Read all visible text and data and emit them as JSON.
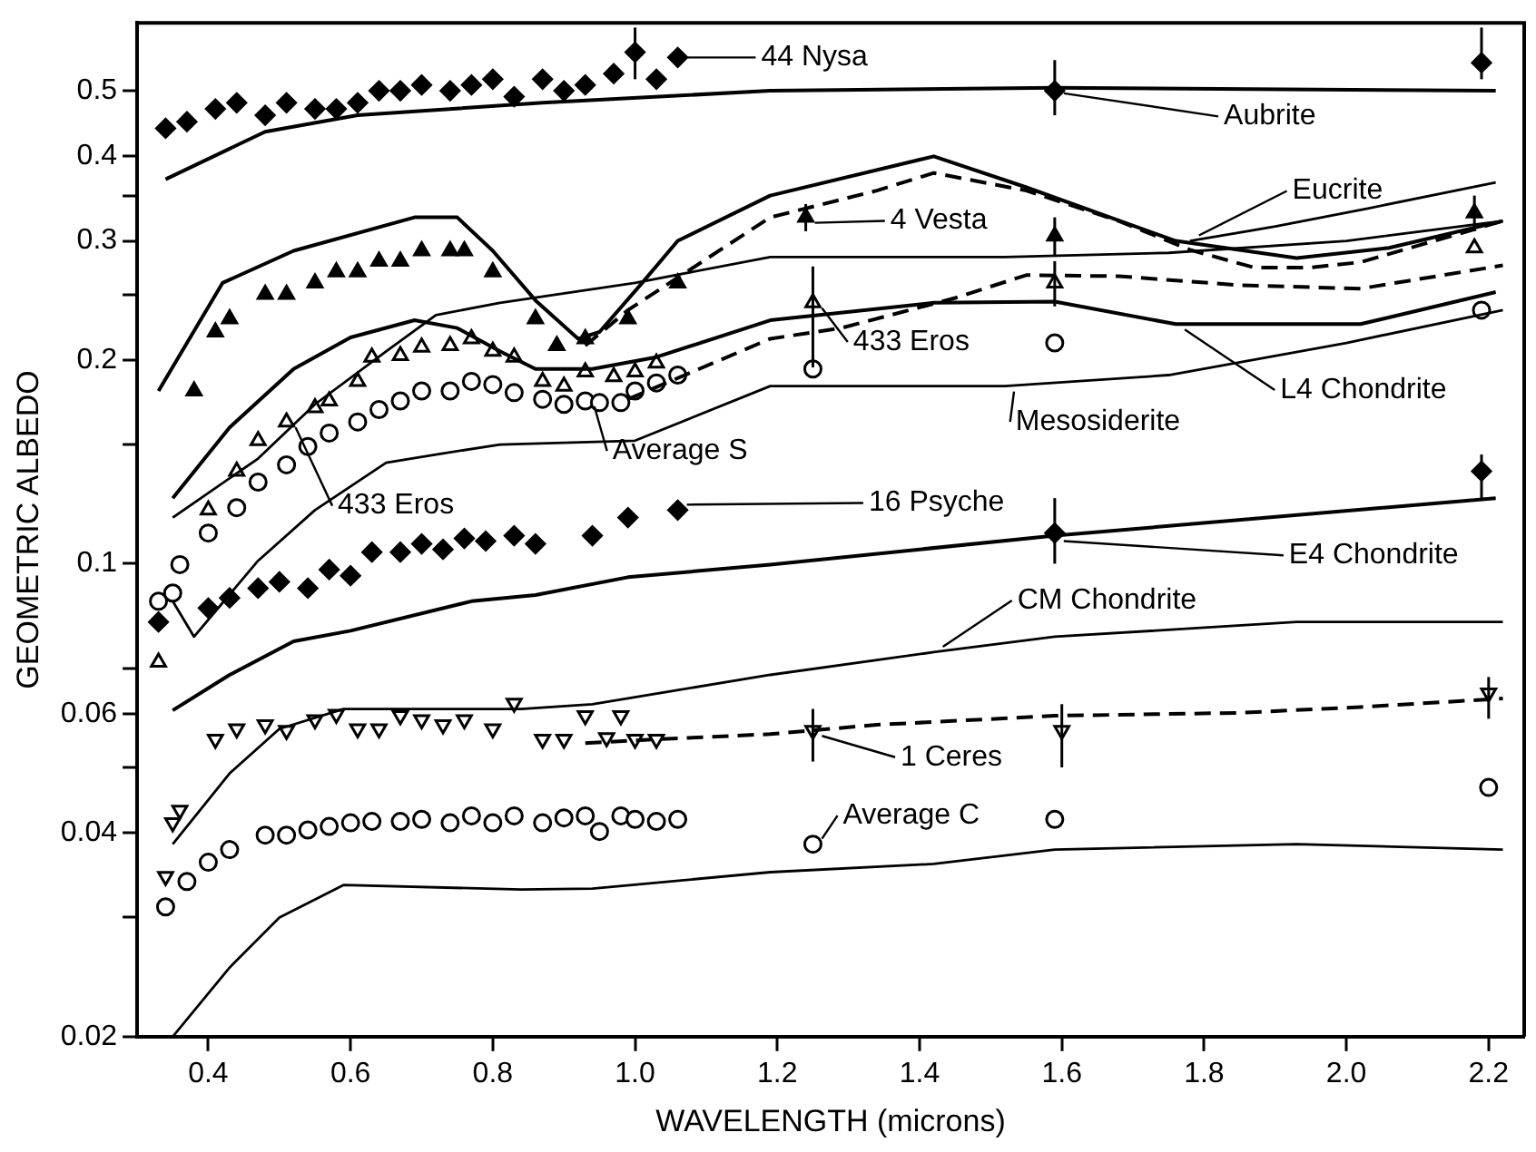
{
  "chart_data": {
    "type": "scatter",
    "xlabel": "WAVELENGTH (microns)",
    "ylabel": "GEOMETRIC ALBEDO",
    "log": "y",
    "xlim": [
      0.3,
      2.25
    ],
    "ylim": [
      0.02,
      0.63
    ],
    "xticks": [
      0.4,
      0.6,
      0.8,
      {
        "value": 1,
        "label": "1.0"
      },
      1.2,
      1.4,
      1.6,
      1.8,
      {
        "value": 2,
        "label": "2.0"
      },
      2.2
    ],
    "yticks": [
      0.02,
      {
        "value": 0.03,
        "label": null
      },
      0.04,
      {
        "value": 0.05,
        "label": null
      },
      0.06,
      {
        "value": 0.07,
        "label": null
      },
      0.1,
      {
        "value": 0.15,
        "label": null
      },
      0.2,
      {
        "value": 0.25,
        "label": null
      },
      0.3,
      {
        "value": 0.35,
        "label": null
      },
      0.4,
      0.5
    ],
    "series": [
      {
        "type": "line",
        "color": "#000000",
        "line_style": "solid",
        "x": [
          0.35,
          0.38,
          0.47,
          0.55,
          0.65,
          0.72,
          0.81,
          1.0,
          1.19,
          1.52,
          1.75,
          2.0,
          2.22
        ],
        "values": [
          0.117,
          0.123,
          0.143,
          0.172,
          0.206,
          0.233,
          0.243,
          0.26,
          0.284,
          0.284,
          0.288,
          0.3,
          0.321
        ]
      },
      {
        "type": "line",
        "color": "#000000",
        "line_style": "solid",
        "x": [
          0.35,
          0.38,
          0.47,
          0.55,
          0.65,
          0.72,
          0.81,
          1.0,
          1.19,
          1.52,
          1.75,
          2.0,
          2.22
        ],
        "values": [
          0.088,
          0.078,
          0.101,
          0.12,
          0.141,
          0.145,
          0.15,
          0.152,
          0.183,
          0.183,
          0.19,
          0.212,
          0.237
        ]
      },
      {
        "type": "line",
        "color": "#000000",
        "line_style": "solid",
        "x": [
          1.78,
          1.9,
          2.03,
          2.21
        ],
        "values": [
          0.3,
          0.315,
          0.335,
          0.366
        ]
      },
      {
        "type": "line",
        "color": "#000000",
        "line_style": "solid",
        "x": [
          0.35,
          0.43,
          0.5,
          0.59,
          0.84,
          0.94,
          1.19,
          1.42,
          1.59,
          1.93,
          2.22
        ],
        "values": [
          0.0385,
          0.049,
          0.057,
          0.061,
          0.061,
          0.062,
          0.0685,
          0.074,
          0.078,
          0.082,
          0.082
        ]
      },
      {
        "type": "line",
        "color": "#000000",
        "line_style": "solid",
        "x": [
          0.35,
          0.43,
          0.5,
          0.59,
          0.84,
          0.94,
          1.19,
          1.42,
          1.59,
          1.93,
          2.22
        ],
        "values": [
          0.02,
          0.0253,
          0.03,
          0.0335,
          0.033,
          0.0331,
          0.035,
          0.036,
          0.0378,
          0.0385,
          0.0378
        ]
      },
      {
        "type": "line",
        "color": "#000000",
        "line_style": "solid",
        "x": [
          0.34,
          0.48,
          0.61,
          0.87,
          1.19,
          1.59,
          2.21
        ],
        "values": [
          0.37,
          0.435,
          0.46,
          0.48,
          0.5,
          0.505,
          0.5
        ]
      },
      {
        "type": "line",
        "color": "#000000",
        "line_style": "solid",
        "x": [
          0.33,
          0.42,
          0.52,
          0.69,
          0.75,
          0.8,
          0.86,
          0.92,
          0.95,
          1.01,
          1.06,
          1.19,
          1.42,
          1.55,
          1.76,
          1.93,
          2.06,
          2.22
        ],
        "values": [
          0.18,
          0.26,
          0.29,
          0.325,
          0.325,
          0.29,
          0.245,
          0.215,
          0.22,
          0.26,
          0.3,
          0.35,
          0.4,
          0.36,
          0.3,
          0.283,
          0.293,
          0.321
        ]
      },
      {
        "type": "line",
        "color": "#000000",
        "line_style": "dashed",
        "x": [
          0.93,
          0.99,
          1.19,
          1.34,
          1.42,
          1.55,
          1.68,
          1.78,
          1.87,
          1.95,
          2.02,
          2.22
        ],
        "values": [
          0.21,
          0.237,
          0.325,
          0.356,
          0.378,
          0.356,
          0.321,
          0.291,
          0.274,
          0.274,
          0.279,
          0.321
        ]
      },
      {
        "type": "line",
        "color": "#000000",
        "line_style": "dashed",
        "x": [
          0.99,
          1.19,
          1.29,
          1.45,
          1.55,
          1.68,
          1.85,
          2.02,
          2.22
        ],
        "values": [
          0.175,
          0.215,
          0.223,
          0.247,
          0.267,
          0.266,
          0.258,
          0.255,
          0.276
        ]
      },
      {
        "type": "line",
        "color": "#000000",
        "line_style": "solid",
        "x": [
          0.35,
          0.43,
          0.52,
          0.6,
          0.69,
          0.75,
          0.81,
          0.86,
          0.94,
          1.03,
          1.19,
          1.42,
          1.59,
          1.76,
          2.02,
          2.21
        ],
        "values": [
          0.125,
          0.159,
          0.194,
          0.216,
          0.229,
          0.223,
          0.206,
          0.194,
          0.194,
          0.202,
          0.229,
          0.243,
          0.244,
          0.226,
          0.226,
          0.252
        ]
      },
      {
        "type": "line",
        "color": "#000000",
        "line_style": "solid",
        "x": [
          0.35,
          0.43,
          0.52,
          0.6,
          0.77,
          0.86,
          0.99,
          1.19,
          1.59,
          2.21
        ],
        "values": [
          0.0607,
          0.0685,
          0.0768,
          0.0796,
          0.088,
          0.0899,
          0.0955,
          0.0997,
          0.11,
          0.125
        ]
      },
      {
        "type": "line",
        "color": "#000000",
        "line_style": "dashed",
        "x": [
          0.93,
          1.03,
          1.19,
          1.34,
          1.59,
          1.85,
          2.02,
          2.22
        ],
        "values": [
          0.0543,
          0.055,
          0.056,
          0.0578,
          0.0596,
          0.0602,
          0.0614,
          0.0632
        ]
      },
      {
        "type": "scatter",
        "color": "#000000",
        "marker": "diamond",
        "x": [
          0.34,
          0.37,
          0.41,
          0.44,
          0.48,
          0.51,
          0.55,
          0.58,
          0.61,
          0.64,
          0.67,
          0.7,
          0.74,
          0.77,
          0.8,
          0.83,
          0.87,
          0.9,
          0.93,
          0.97,
          1.0,
          1.03,
          1.06,
          1.59,
          2.19
        ],
        "values": [
          0.44,
          0.45,
          0.47,
          0.48,
          0.46,
          0.48,
          0.47,
          0.47,
          0.48,
          0.5,
          0.5,
          0.51,
          0.5,
          0.51,
          0.52,
          0.49,
          0.52,
          0.5,
          0.51,
          0.53,
          0.57,
          0.52,
          0.56,
          0.5,
          0.55
        ],
        "errors": [
          null,
          null,
          null,
          null,
          null,
          null,
          null,
          null,
          null,
          null,
          null,
          null,
          null,
          null,
          null,
          null,
          null,
          null,
          null,
          null,
          [
            0.52,
            0.62
          ],
          null,
          null,
          [
            0.46,
            0.555
          ],
          [
            0.52,
            0.62
          ]
        ]
      },
      {
        "type": "scatter",
        "color": "#000000",
        "marker": "triangle",
        "x": [
          0.38,
          0.41,
          0.43,
          0.48,
          0.51,
          0.55,
          0.58,
          0.61,
          0.64,
          0.67,
          0.7,
          0.74,
          0.76,
          0.8,
          0.86,
          0.89,
          0.93,
          0.99,
          1.06,
          1.24,
          1.59,
          2.18
        ],
        "values": [
          0.18,
          0.22,
          0.23,
          0.25,
          0.25,
          0.26,
          0.27,
          0.27,
          0.28,
          0.28,
          0.29,
          0.29,
          0.29,
          0.27,
          0.23,
          0.21,
          0.215,
          0.23,
          0.26,
          0.325,
          0.305,
          0.33
        ],
        "errors": [
          null,
          null,
          null,
          null,
          null,
          null,
          null,
          null,
          null,
          null,
          null,
          null,
          null,
          null,
          null,
          null,
          null,
          null,
          null,
          [
            0.31,
            0.34
          ],
          [
            0.285,
            0.325
          ],
          [
            0.31,
            0.35
          ]
        ]
      },
      {
        "type": "scatter",
        "color": "#ffffff",
        "marker": "triangle",
        "x": [
          0.33,
          0.4,
          0.44,
          0.47,
          0.51,
          0.55,
          0.57,
          0.61,
          0.63,
          0.67,
          0.7,
          0.74,
          0.77,
          0.8,
          0.83,
          0.87,
          0.9,
          0.93,
          0.97,
          1.0,
          1.03,
          1.25,
          1.59,
          2.18
        ],
        "values": [
          0.0715,
          0.12,
          0.137,
          0.152,
          0.162,
          0.17,
          0.174,
          0.186,
          0.202,
          0.203,
          0.209,
          0.21,
          0.215,
          0.206,
          0.202,
          0.186,
          0.183,
          0.192,
          0.189,
          0.192,
          0.198,
          0.243,
          0.26,
          0.293
        ],
        "errors": [
          null,
          null,
          null,
          null,
          null,
          null,
          null,
          null,
          null,
          null,
          null,
          null,
          null,
          null,
          null,
          null,
          null,
          null,
          null,
          null,
          null,
          [
            0.195,
            0.275
          ],
          [
            0.24,
            0.28
          ],
          null
        ]
      },
      {
        "type": "scatter",
        "color": "#ffffff",
        "marker": "circle",
        "x": [
          0.33,
          0.35,
          0.36,
          0.4,
          0.44,
          0.47,
          0.51,
          0.54,
          0.57,
          0.61,
          0.64,
          0.67,
          0.7,
          0.74,
          0.77,
          0.8,
          0.83,
          0.87,
          0.9,
          0.93,
          0.95,
          0.98,
          1.0,
          1.03,
          1.06,
          1.25,
          1.59,
          2.19
        ],
        "values": [
          0.088,
          0.0905,
          0.0997,
          0.111,
          0.121,
          0.132,
          0.14,
          0.149,
          0.156,
          0.162,
          0.169,
          0.174,
          0.18,
          0.18,
          0.186,
          0.184,
          0.179,
          0.175,
          0.172,
          0.174,
          0.173,
          0.173,
          0.18,
          0.185,
          0.19,
          0.194,
          0.212,
          0.237
        ]
      },
      {
        "type": "scatter",
        "color": "#000000",
        "marker": "diamond",
        "x": [
          0.33,
          0.4,
          0.43,
          0.47,
          0.5,
          0.54,
          0.57,
          0.6,
          0.63,
          0.67,
          0.7,
          0.73,
          0.76,
          0.79,
          0.83,
          0.86,
          0.94,
          0.99,
          1.06,
          1.59,
          2.19
        ],
        "values": [
          0.082,
          0.086,
          0.089,
          0.092,
          0.094,
          0.092,
          0.098,
          0.096,
          0.104,
          0.104,
          0.107,
          0.105,
          0.109,
          0.108,
          0.11,
          0.107,
          0.11,
          0.117,
          0.12,
          0.111,
          0.137
        ],
        "errors": [
          null,
          null,
          null,
          null,
          null,
          null,
          null,
          null,
          null,
          null,
          null,
          null,
          null,
          null,
          null,
          null,
          null,
          null,
          null,
          [
            0.1,
            0.125
          ],
          [
            0.125,
            0.145
          ]
        ]
      },
      {
        "type": "scatter",
        "color": "#ffffff",
        "marker": "triangle-down",
        "x": [
          0.34,
          0.35,
          0.36,
          0.41,
          0.44,
          0.48,
          0.51,
          0.55,
          0.58,
          0.61,
          0.64,
          0.67,
          0.7,
          0.73,
          0.76,
          0.8,
          0.83,
          0.87,
          0.9,
          0.93,
          0.96,
          0.98,
          1.0,
          1.03,
          1.25,
          1.6,
          2.2
        ],
        "values": [
          0.0345,
          0.0414,
          0.0432,
          0.055,
          0.057,
          0.0578,
          0.0567,
          0.0588,
          0.0599,
          0.057,
          0.057,
          0.0596,
          0.0588,
          0.0578,
          0.0588,
          0.057,
          0.0622,
          0.055,
          0.055,
          0.0596,
          0.0553,
          0.0596,
          0.055,
          0.055,
          0.0567,
          0.0567,
          0.0644
        ],
        "errors": [
          null,
          null,
          null,
          null,
          null,
          null,
          null,
          null,
          null,
          null,
          null,
          null,
          null,
          null,
          null,
          null,
          null,
          null,
          null,
          null,
          null,
          null,
          null,
          null,
          [
            0.051,
            0.061
          ],
          [
            0.05,
            0.062
          ],
          [
            0.059,
            0.068
          ]
        ]
      },
      {
        "type": "scatter",
        "color": "#ffffff",
        "marker": "circle",
        "x": [
          0.34,
          0.37,
          0.4,
          0.43,
          0.48,
          0.51,
          0.54,
          0.57,
          0.6,
          0.63,
          0.67,
          0.7,
          0.74,
          0.77,
          0.8,
          0.83,
          0.87,
          0.9,
          0.93,
          0.95,
          0.98,
          1.0,
          1.03,
          1.06,
          1.25,
          1.59,
          2.2
        ],
        "values": [
          0.0311,
          0.0339,
          0.0362,
          0.0378,
          0.0397,
          0.0397,
          0.0404,
          0.0409,
          0.0414,
          0.0416,
          0.0416,
          0.0419,
          0.0414,
          0.0424,
          0.0414,
          0.0424,
          0.0414,
          0.0421,
          0.0424,
          0.0402,
          0.0424,
          0.0419,
          0.0416,
          0.0419,
          0.0385,
          0.0419,
          0.0467
        ]
      }
    ],
    "annotations": [
      {
        "text": "44 Nysa",
        "x": 1.06,
        "y": 0.56
      },
      {
        "text": "Aubrite",
        "x": 1.59,
        "y": 0.505
      },
      {
        "text": "Eucrite",
        "x": 1.78,
        "y": 0.3
      },
      {
        "text": "4 Vesta",
        "x": 1.24,
        "y": 0.325
      },
      {
        "text": "433 Eros",
        "x": 1.25,
        "y": 0.243
      },
      {
        "text": "L4 Chondrite",
        "x": 1.76,
        "y": 0.226
      },
      {
        "text": "Mesosiderite",
        "x": 1.52,
        "y": 0.183
      },
      {
        "text": "Average S",
        "x": 0.93,
        "y": 0.174
      },
      {
        "text": "433 Eros",
        "x": 0.51,
        "y": 0.162
      },
      {
        "text": "16 Psyche",
        "x": 1.06,
        "y": 0.12
      },
      {
        "text": "E4 Chondrite",
        "x": 1.59,
        "y": 0.11
      },
      {
        "text": "CM Chondrite",
        "x": 1.42,
        "y": 0.074
      },
      {
        "text": "1 Ceres",
        "x": 1.25,
        "y": 0.0567
      },
      {
        "text": "Average C",
        "x": 1.25,
        "y": 0.0385
      }
    ]
  }
}
